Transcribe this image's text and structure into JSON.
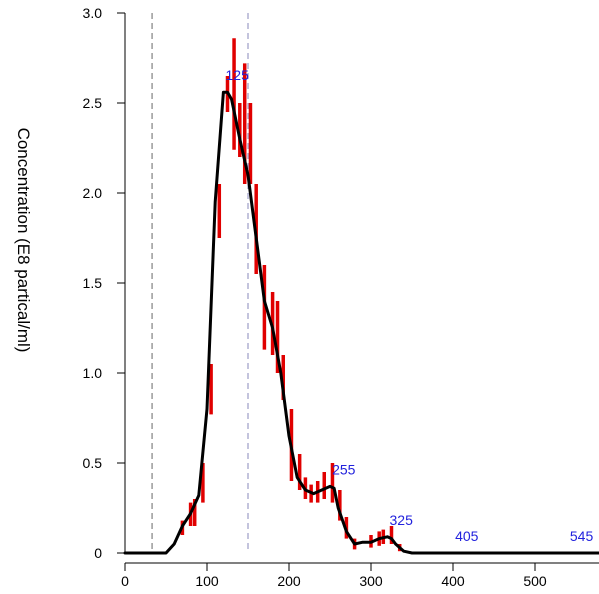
{
  "chart_data": {
    "type": "line",
    "title": "",
    "xlabel": "",
    "ylabel": "Concentration    (E8  partical/ml)",
    "xlim": [
      0,
      580
    ],
    "ylim": [
      0,
      3.0
    ],
    "x_ticks": [
      "0",
      "100",
      "200",
      "300",
      "400",
      "500"
    ],
    "x_tick_values": [
      0,
      100,
      200,
      300,
      400,
      500
    ],
    "y_ticks": [
      "0",
      "0.5",
      "1.0",
      "1.5",
      "2.0",
      "2.5",
      "3.0"
    ],
    "y_tick_values": [
      0,
      0.5,
      1.0,
      1.5,
      2.0,
      2.5,
      3.0
    ],
    "grid": false,
    "colors": {
      "line": "#000000",
      "error_bars": "#e00000",
      "peak_labels": "#2222dd",
      "ref_lines": "#666666",
      "mean_line": "#8888bb"
    },
    "reference_lines": [
      {
        "x": 33,
        "color": "#666666"
      },
      {
        "x": 150,
        "color": "#8888bb"
      }
    ],
    "series": [
      {
        "x": [
          0,
          30,
          50,
          60,
          70,
          80,
          90,
          100,
          110,
          120,
          125,
          130,
          140,
          150,
          160,
          170,
          180,
          190,
          200,
          210,
          220,
          230,
          240,
          250,
          255,
          260,
          270,
          280,
          290,
          300,
          310,
          320,
          325,
          330,
          340,
          350,
          400,
          450,
          500,
          545,
          580
        ],
        "y": [
          0,
          0,
          0,
          0.05,
          0.15,
          0.22,
          0.32,
          0.8,
          1.95,
          2.56,
          2.56,
          2.52,
          2.3,
          2.1,
          1.75,
          1.4,
          1.25,
          1.0,
          0.65,
          0.42,
          0.35,
          0.33,
          0.35,
          0.37,
          0.36,
          0.25,
          0.12,
          0.05,
          0.06,
          0.06,
          0.08,
          0.09,
          0.08,
          0.05,
          0.01,
          0,
          0,
          0,
          0,
          0,
          0
        ]
      }
    ],
    "error_bars": [
      {
        "x": 70,
        "low": 0.1,
        "high": 0.18
      },
      {
        "x": 80,
        "low": 0.15,
        "high": 0.28
      },
      {
        "x": 85,
        "low": 0.15,
        "high": 0.3
      },
      {
        "x": 95,
        "low": 0.28,
        "high": 0.5
      },
      {
        "x": 105,
        "low": 0.77,
        "high": 1.05
      },
      {
        "x": 115,
        "low": 1.75,
        "high": 2.05
      },
      {
        "x": 125,
        "low": 2.45,
        "high": 2.65
      },
      {
        "x": 133,
        "low": 2.24,
        "high": 2.86
      },
      {
        "x": 140,
        "low": 2.2,
        "high": 2.5
      },
      {
        "x": 146,
        "low": 2.05,
        "high": 2.72
      },
      {
        "x": 153,
        "low": 2.05,
        "high": 2.5
      },
      {
        "x": 160,
        "low": 1.55,
        "high": 2.05
      },
      {
        "x": 170,
        "low": 1.13,
        "high": 1.6
      },
      {
        "x": 180,
        "low": 1.1,
        "high": 1.45
      },
      {
        "x": 186,
        "low": 1.0,
        "high": 1.4
      },
      {
        "x": 193,
        "low": 0.85,
        "high": 1.1
      },
      {
        "x": 203,
        "low": 0.4,
        "high": 0.8
      },
      {
        "x": 213,
        "low": 0.35,
        "high": 0.55
      },
      {
        "x": 220,
        "low": 0.3,
        "high": 0.42
      },
      {
        "x": 227,
        "low": 0.28,
        "high": 0.38
      },
      {
        "x": 235,
        "low": 0.28,
        "high": 0.4
      },
      {
        "x": 243,
        "low": 0.3,
        "high": 0.45
      },
      {
        "x": 253,
        "low": 0.28,
        "high": 0.5
      },
      {
        "x": 262,
        "low": 0.18,
        "high": 0.35
      },
      {
        "x": 270,
        "low": 0.08,
        "high": 0.2
      },
      {
        "x": 280,
        "low": 0.02,
        "high": 0.08
      },
      {
        "x": 300,
        "low": 0.03,
        "high": 0.1
      },
      {
        "x": 310,
        "low": 0.04,
        "high": 0.12
      },
      {
        "x": 315,
        "low": 0.05,
        "high": 0.13
      },
      {
        "x": 325,
        "low": 0.05,
        "high": 0.15
      },
      {
        "x": 335,
        "low": 0.01,
        "high": 0.05
      }
    ],
    "peak_labels": [
      {
        "text": "125",
        "x": 125,
        "y": 2.56
      },
      {
        "text": "255",
        "x": 255,
        "y": 0.37
      },
      {
        "text": "325",
        "x": 325,
        "y": 0.09
      },
      {
        "text": "405",
        "x": 405,
        "y": 0.0
      },
      {
        "text": "545",
        "x": 545,
        "y": 0.0
      }
    ]
  }
}
